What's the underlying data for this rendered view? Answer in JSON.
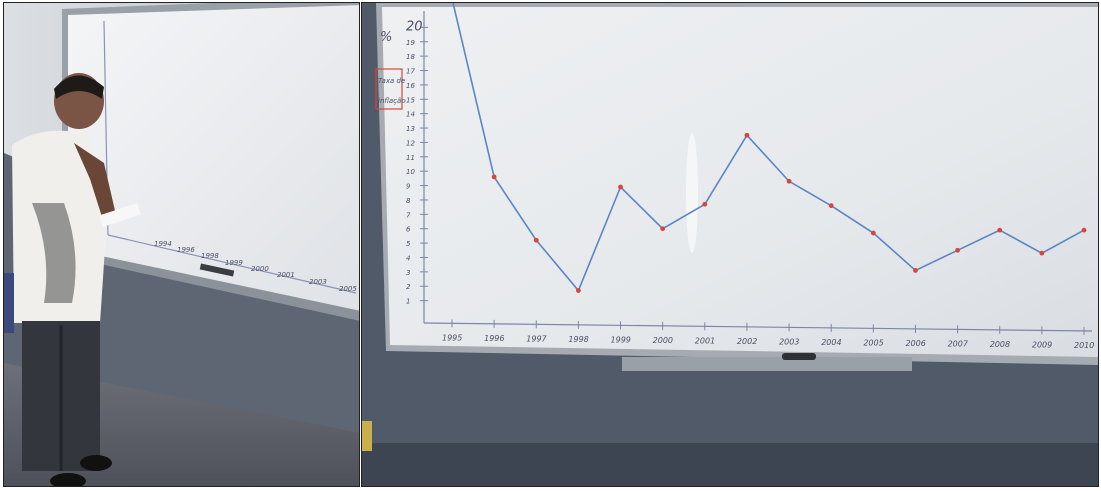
{
  "photo_left": {
    "description_hidden": "",
    "tick_labels": [
      "1994",
      "1996",
      "1998",
      "1999",
      "2000",
      "2001",
      "2003",
      "2005"
    ]
  },
  "chart_data": {
    "type": "line",
    "title": "",
    "ylabel": "%",
    "legend": [
      "Taxa de",
      "inflação"
    ],
    "categories": [
      "1995",
      "1996",
      "1997",
      "1998",
      "1999",
      "2000",
      "2001",
      "2002",
      "2003",
      "2004",
      "2005",
      "2006",
      "2007",
      "2008",
      "2009",
      "2010"
    ],
    "tick_labels": [
      "1995",
      "1996",
      "1997",
      "1998",
      "1999",
      "2000",
      "2001",
      "2002",
      "2003",
      "2004",
      "2005",
      "2006",
      "2007",
      "2008",
      "2009",
      "2010"
    ],
    "values": [
      22.0,
      9.6,
      5.2,
      1.7,
      8.9,
      6.0,
      7.7,
      12.5,
      9.3,
      7.6,
      5.7,
      3.1,
      4.5,
      5.9,
      4.3,
      5.9
    ],
    "ylim": [
      0,
      21
    ],
    "y_ticks": [
      "20",
      "19",
      "18",
      "17",
      "16",
      "15",
      "14",
      "13",
      "12",
      "11",
      "10",
      "9",
      "8",
      "7",
      "6",
      "5",
      "4",
      "3",
      "2",
      "1"
    ],
    "colors": {
      "line": "#5b86c4",
      "points": "#d9453a",
      "legend_box": "#d9453a"
    }
  }
}
